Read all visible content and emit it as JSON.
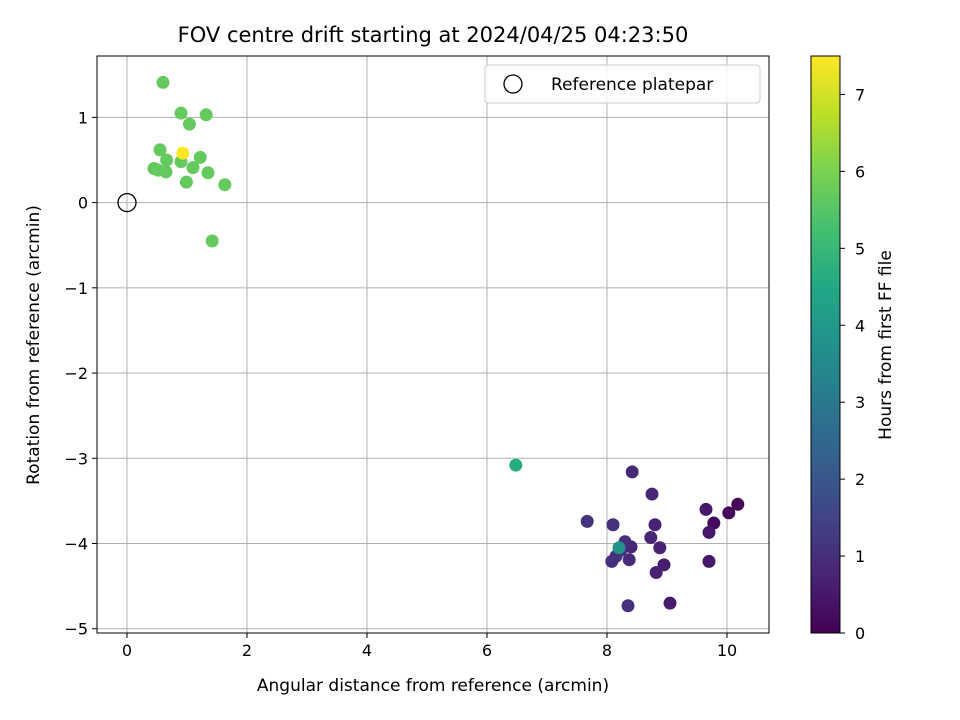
{
  "chart_data": {
    "type": "scatter",
    "title": "FOV centre drift starting at 2024/04/25 04:23:50",
    "xlabel": "Angular distance from reference (arcmin)",
    "ylabel": "Rotation from reference (arcmin)",
    "xlim": [
      -0.5,
      10.7
    ],
    "ylim": [
      -5.05,
      1.72
    ],
    "xticks": [
      0,
      2,
      4,
      6,
      8,
      10
    ],
    "yticks": [
      -5,
      -4,
      -3,
      -2,
      -1,
      0,
      1
    ],
    "grid": true,
    "legend": {
      "placement": "top-right",
      "entries": [
        "Reference platepar"
      ]
    },
    "reference_point": {
      "x": 0,
      "y": 0
    },
    "colorbar": {
      "label": "Hours from first FF file",
      "colormap": "viridis",
      "range": [
        0,
        7.5
      ],
      "ticks": [
        0,
        1,
        2,
        3,
        4,
        5,
        6,
        7
      ]
    },
    "points": [
      {
        "x": 10.18,
        "y": -3.54,
        "c": 0.1
      },
      {
        "x": 10.03,
        "y": -3.64,
        "c": 0.15
      },
      {
        "x": 9.78,
        "y": -3.76,
        "c": 0.2
      },
      {
        "x": 9.65,
        "y": -3.6,
        "c": 0.5
      },
      {
        "x": 9.7,
        "y": -3.87,
        "c": 0.5
      },
      {
        "x": 9.7,
        "y": -4.21,
        "c": 0.5
      },
      {
        "x": 9.05,
        "y": -4.7,
        "c": 0.55
      },
      {
        "x": 8.95,
        "y": -4.25,
        "c": 0.6
      },
      {
        "x": 8.82,
        "y": -4.34,
        "c": 0.7
      },
      {
        "x": 8.88,
        "y": -4.05,
        "c": 0.7
      },
      {
        "x": 8.8,
        "y": -3.78,
        "c": 0.75
      },
      {
        "x": 8.73,
        "y": -3.93,
        "c": 0.8
      },
      {
        "x": 8.75,
        "y": -3.42,
        "c": 0.8
      },
      {
        "x": 8.42,
        "y": -3.16,
        "c": 0.85
      },
      {
        "x": 8.4,
        "y": -4.04,
        "c": 0.85
      },
      {
        "x": 8.37,
        "y": -4.19,
        "c": 0.9
      },
      {
        "x": 8.3,
        "y": -3.98,
        "c": 0.95
      },
      {
        "x": 8.23,
        "y": -4.08,
        "c": 0.95
      },
      {
        "x": 8.15,
        "y": -4.15,
        "c": 1.0
      },
      {
        "x": 8.1,
        "y": -3.78,
        "c": 1.0
      },
      {
        "x": 8.08,
        "y": -4.21,
        "c": 1.0
      },
      {
        "x": 8.35,
        "y": -4.73,
        "c": 1.05
      },
      {
        "x": 7.67,
        "y": -3.74,
        "c": 1.1
      },
      {
        "x": 8.2,
        "y": -4.05,
        "c": 3.8
      },
      {
        "x": 6.48,
        "y": -3.08,
        "c": 4.6
      },
      {
        "x": 0.45,
        "y": 0.4,
        "c": 5.7
      },
      {
        "x": 0.52,
        "y": 0.38,
        "c": 5.7
      },
      {
        "x": 0.55,
        "y": 0.62,
        "c": 5.7
      },
      {
        "x": 0.65,
        "y": 0.36,
        "c": 5.7
      },
      {
        "x": 0.66,
        "y": 0.5,
        "c": 5.7
      },
      {
        "x": 0.6,
        "y": 1.41,
        "c": 5.7
      },
      {
        "x": 0.9,
        "y": 0.48,
        "c": 5.7
      },
      {
        "x": 0.9,
        "y": 1.05,
        "c": 5.7
      },
      {
        "x": 0.99,
        "y": 0.24,
        "c": 5.7
      },
      {
        "x": 1.04,
        "y": 0.92,
        "c": 5.7
      },
      {
        "x": 1.1,
        "y": 0.41,
        "c": 5.7
      },
      {
        "x": 1.22,
        "y": 0.53,
        "c": 5.7
      },
      {
        "x": 1.32,
        "y": 1.03,
        "c": 5.7
      },
      {
        "x": 1.35,
        "y": 0.35,
        "c": 5.7
      },
      {
        "x": 1.42,
        "y": -0.45,
        "c": 5.7
      },
      {
        "x": 1.63,
        "y": 0.21,
        "c": 5.7
      },
      {
        "x": 0.93,
        "y": 0.58,
        "c": 7.5
      }
    ]
  }
}
